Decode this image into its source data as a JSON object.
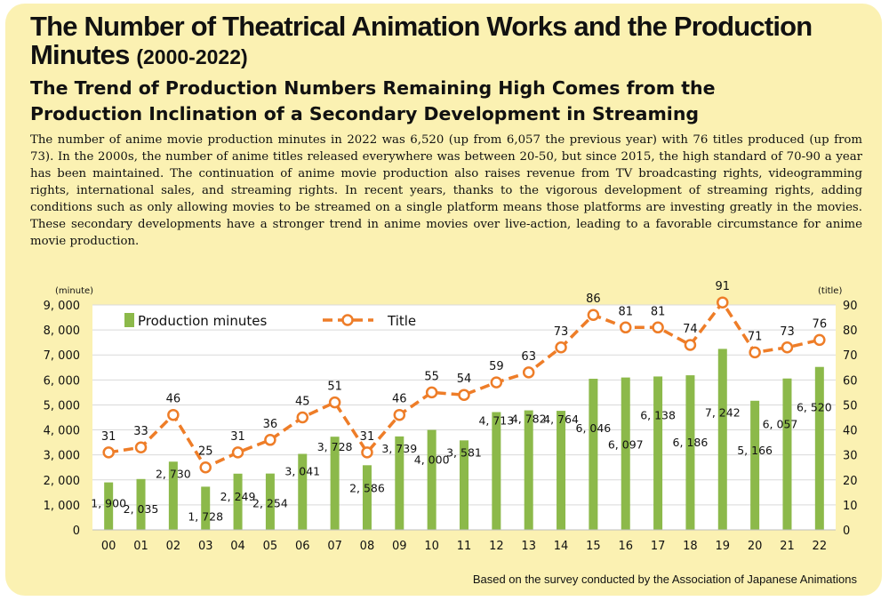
{
  "header": {
    "title": "The Number of Theatrical Animation Works and the Production Minutes",
    "title_years": "(2000-2022)",
    "subtitle_line1": "The Trend of Production Numbers Remaining High Comes from the",
    "subtitle_line2": "Production Inclination of a Secondary Development in Streaming"
  },
  "body_text": "The number of anime movie production minutes in 2022 was 6,520 (up from 6,057 the previous year) with 76 titles produced (up from 73). In the 2000s, the number of anime titles released everywhere was between 20-50, but since 2015, the high standard of 70-90 a year has been maintained. The continuation of anime movie production also raises revenue from TV broadcasting rights, videogramming rights, international sales, and streaming rights. In recent years, thanks to the vigorous development of streaming rights, adding conditions such as only allowing movies to be streamed on a single platform means those platforms are investing greatly in the movies. These secondary developments have a stronger trend in anime movies over live-action, leading to a favorable circumstance for anime movie production.",
  "source": "Based on the survey conducted by the Association of Japanese Animations",
  "colors": {
    "bar": "#8cb94a",
    "line": "#ee7d28",
    "background": "#fbf1b2",
    "plot": "#ffffff",
    "grid": "#d9d9d9"
  },
  "chart_data": {
    "type": "bar",
    "categories": [
      "00",
      "01",
      "02",
      "03",
      "04",
      "05",
      "06",
      "07",
      "08",
      "09",
      "10",
      "11",
      "12",
      "13",
      "14",
      "15",
      "16",
      "17",
      "18",
      "19",
      "20",
      "21",
      "22"
    ],
    "series": [
      {
        "name": "Production minutes",
        "type": "bar",
        "axis": "left",
        "values": [
          1900,
          2035,
          2730,
          1728,
          2249,
          2254,
          3041,
          3728,
          2586,
          3739,
          4000,
          3581,
          4713,
          4782,
          4764,
          6046,
          6097,
          6138,
          6186,
          7242,
          5166,
          6057,
          6520
        ],
        "labels": [
          "1, 900",
          "2, 035",
          "2, 730",
          "1, 728",
          "2, 249",
          "2, 254",
          "3, 041",
          "3, 728",
          "2, 586",
          "3, 739",
          "4, 000",
          "3, 581",
          "4, 713",
          "4, 782",
          "4, 764",
          "6, 046",
          "6, 097",
          "6, 138",
          "6, 186",
          "7, 242",
          "5, 166",
          "6, 057",
          "6, 520"
        ]
      },
      {
        "name": "Title",
        "type": "line",
        "axis": "right",
        "values": [
          31,
          33,
          46,
          25,
          31,
          36,
          45,
          51,
          31,
          46,
          55,
          54,
          59,
          63,
          73,
          86,
          81,
          81,
          74,
          91,
          71,
          73,
          76
        ]
      }
    ],
    "y_left": {
      "unit": "(minute)",
      "range": [
        0,
        9000
      ],
      "ticks": [
        "0",
        "1, 000",
        "2, 000",
        "3, 000",
        "4, 000",
        "5, 000",
        "6, 000",
        "7, 000",
        "8, 000",
        "9, 000"
      ]
    },
    "y_right": {
      "unit": "(title)",
      "range": [
        0,
        90
      ],
      "ticks": [
        "0",
        "10",
        "20",
        "30",
        "40",
        "50",
        "60",
        "70",
        "80",
        "90"
      ]
    },
    "grid": true,
    "legend_position": "top-left"
  }
}
